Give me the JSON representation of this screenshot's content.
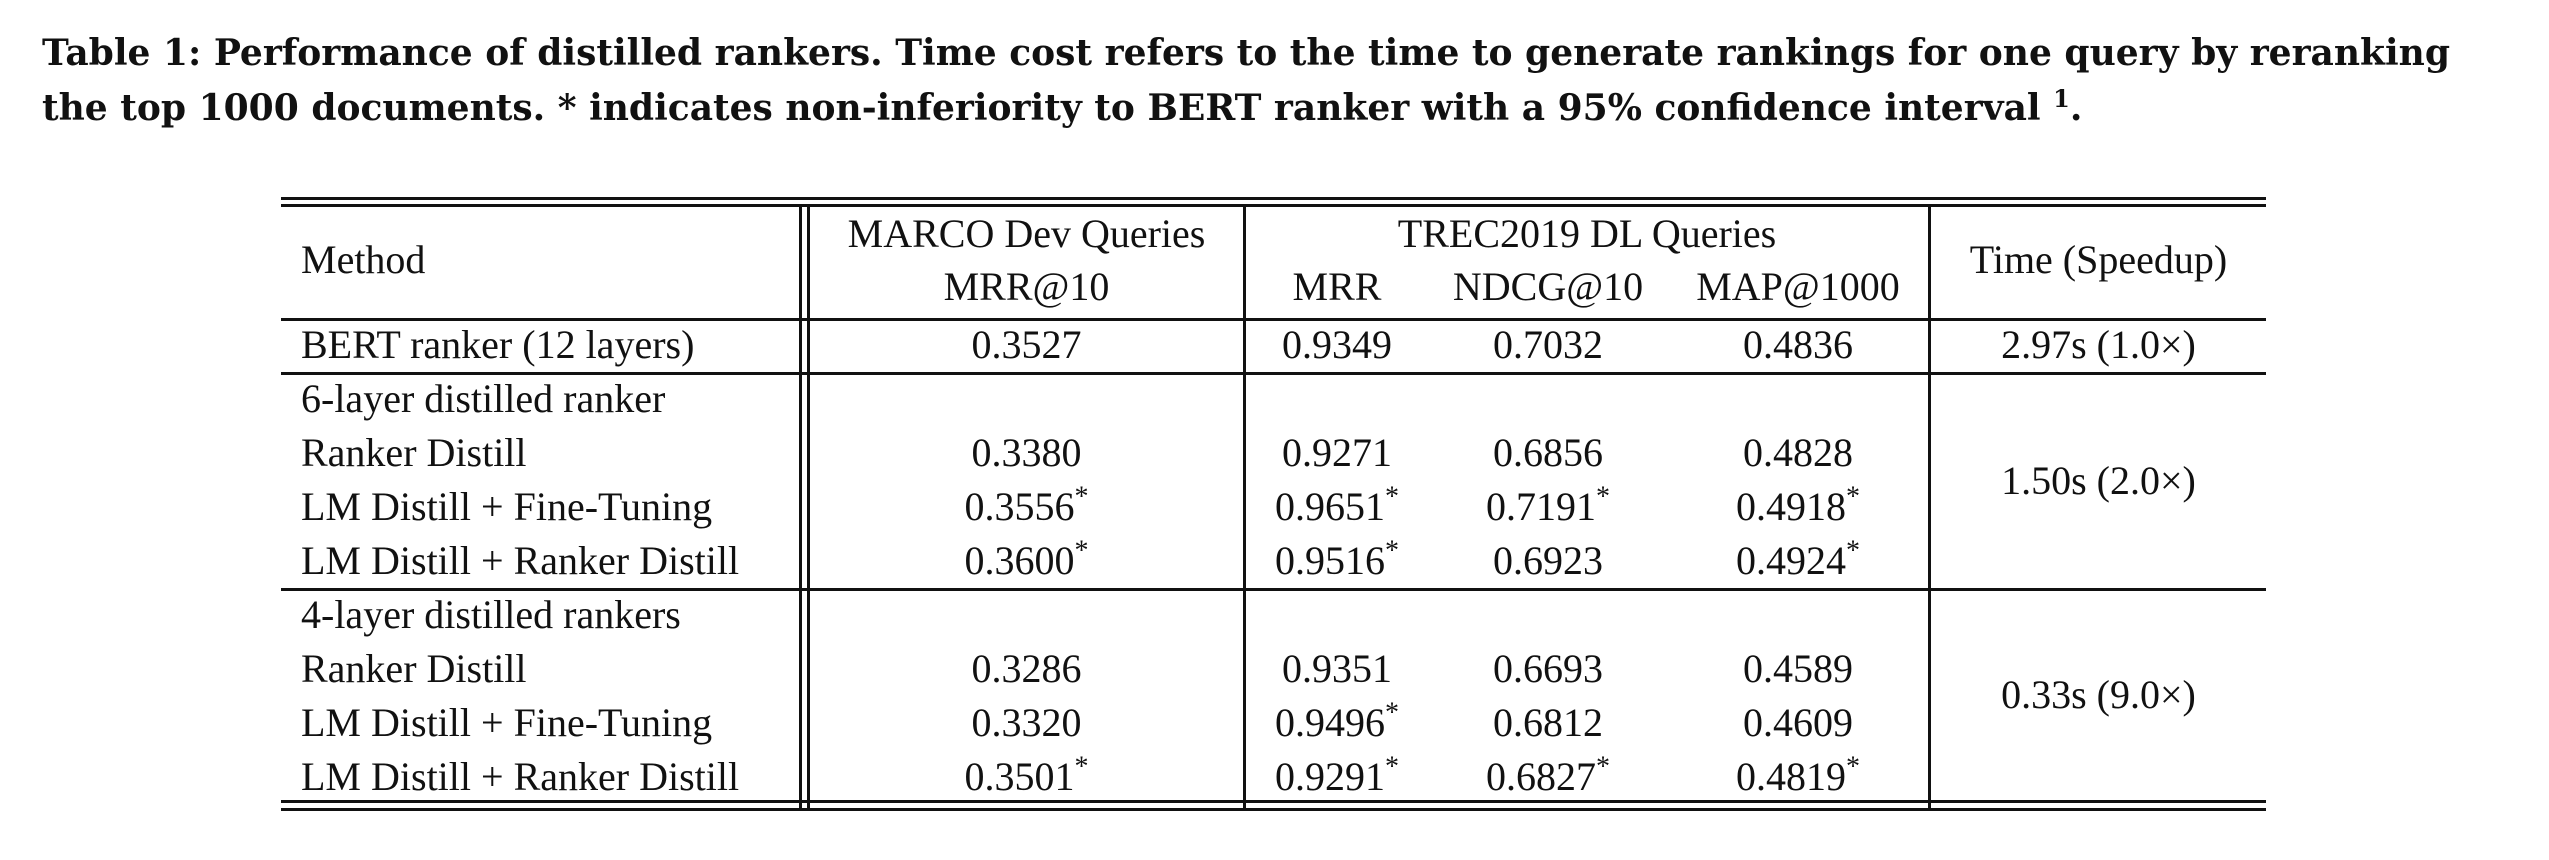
{
  "caption": {
    "text": "Table 1: Performance of distilled rankers. Time cost refers to the time to generate rankings for one query by reranking the top 1000 documents. * indicates non-inferiority to BERT ranker with a 95% confidence interval",
    "footnote_mark": "1",
    "end": "."
  },
  "table": {
    "header": {
      "method": "Method",
      "group_marco": "MARCO Dev Queries",
      "group_trec": "TREC2019 DL Queries",
      "time": "Time (Speedup)",
      "col_marco_mrr10": "MRR@10",
      "col_trec_mrr": "MRR",
      "col_trec_ndcg10": "NDCG@10",
      "col_trec_map1000": "MAP@1000"
    },
    "baseline": {
      "method": "BERT ranker (12 layers)",
      "marco_mrr10": "0.3527",
      "trec_mrr": "0.9349",
      "trec_ndcg10": "0.7032",
      "trec_map1000": "0.4836",
      "time": "2.97s (1.0×)"
    },
    "groups": [
      {
        "title": "6-layer distilled ranker",
        "time": "1.50s (2.0×)",
        "rows": [
          {
            "method": "Ranker Distill",
            "marco_mrr10": "0.3380",
            "marco_star": "",
            "trec_mrr": "0.9271",
            "trec_mrr_star": "",
            "trec_ndcg10": "0.6856",
            "trec_ndcg10_star": "",
            "trec_map1000": "0.4828",
            "trec_map1000_star": ""
          },
          {
            "method": "LM Distill + Fine-Tuning",
            "marco_mrr10": "0.3556",
            "marco_star": "*",
            "trec_mrr": "0.9651",
            "trec_mrr_star": "*",
            "trec_ndcg10": "0.7191",
            "trec_ndcg10_star": "*",
            "trec_map1000": "0.4918",
            "trec_map1000_star": "*"
          },
          {
            "method": "LM Distill + Ranker Distill",
            "marco_mrr10": "0.3600",
            "marco_star": "*",
            "trec_mrr": "0.9516",
            "trec_mrr_star": "*",
            "trec_ndcg10": "0.6923",
            "trec_ndcg10_star": "",
            "trec_map1000": "0.4924",
            "trec_map1000_star": "*"
          }
        ]
      },
      {
        "title": "4-layer distilled rankers",
        "time": "0.33s (9.0×)",
        "rows": [
          {
            "method": "Ranker Distill",
            "marco_mrr10": "0.3286",
            "marco_star": "",
            "trec_mrr": "0.9351",
            "trec_mrr_star": "",
            "trec_ndcg10": "0.6693",
            "trec_ndcg10_star": "",
            "trec_map1000": "0.4589",
            "trec_map1000_star": ""
          },
          {
            "method": "LM Distill + Fine-Tuning",
            "marco_mrr10": "0.3320",
            "marco_star": "",
            "trec_mrr": "0.9496",
            "trec_mrr_star": "*",
            "trec_ndcg10": "0.6812",
            "trec_ndcg10_star": "",
            "trec_map1000": "0.4609",
            "trec_map1000_star": ""
          },
          {
            "method": "LM Distill + Ranker Distill",
            "marco_mrr10": "0.3501",
            "marco_star": "*",
            "trec_mrr": "0.9291",
            "trec_mrr_star": "*",
            "trec_ndcg10": "0.6827",
            "trec_ndcg10_star": "*",
            "trec_map1000": "0.4819",
            "trec_map1000_star": "*"
          }
        ]
      }
    ]
  }
}
